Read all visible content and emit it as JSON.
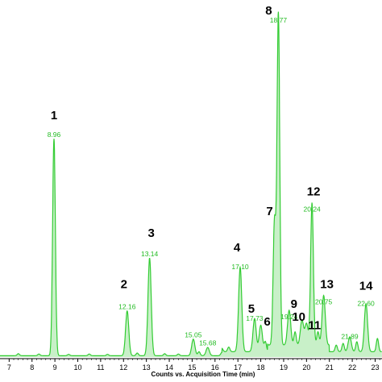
{
  "chart_data": {
    "type": "line",
    "title": "",
    "xlabel": "Counts vs. Acquisition Time (min)",
    "ylabel": "",
    "xlim": [
      6.6,
      23.3
    ],
    "ylim": [
      0,
      100
    ],
    "x_ticks": [
      "7",
      "8",
      "9",
      "10",
      "11",
      "12",
      "13",
      "14",
      "15",
      "16",
      "17",
      "18",
      "19",
      "20",
      "21",
      "22",
      "23"
    ],
    "colors": {
      "trace": "#33cc33",
      "fill": "#c8f0c8",
      "rt_label": "#22bb22",
      "axis": "#000000"
    },
    "peaks": [
      {
        "t": 8.96,
        "h": 65.5,
        "rt": "8.96",
        "num": "1"
      },
      {
        "t": 12.16,
        "h": 13.5,
        "rt": "12.16",
        "num": "2"
      },
      {
        "t": 13.14,
        "h": 29.5,
        "rt": "13.14",
        "num": "3"
      },
      {
        "t": 15.05,
        "h": 5.0,
        "rt": "15.05",
        "num": ""
      },
      {
        "t": 15.68,
        "h": 2.5,
        "rt": "15.68",
        "num": ""
      },
      {
        "t": 17.1,
        "h": 25.5,
        "rt": "17.10",
        "num": "4"
      },
      {
        "t": 17.73,
        "h": 10.0,
        "rt": "17.73",
        "num": "5"
      },
      {
        "t": 18.0,
        "h": 8.0,
        "rt": "",
        "num": "6"
      },
      {
        "t": 18.6,
        "h": 37.0,
        "rt": "",
        "num": "7"
      },
      {
        "t": 18.77,
        "h": 100.0,
        "rt": "18.77",
        "num": "8"
      },
      {
        "t": 19.24,
        "h": 10.5,
        "rt": "19.24",
        "num": "9"
      },
      {
        "t": 19.8,
        "h": 7.5,
        "rt": "",
        "num": "10"
      },
      {
        "t": 20.0,
        "h": 6.5,
        "rt": "",
        "num": "11"
      },
      {
        "t": 20.24,
        "h": 43.0,
        "rt": "20.24",
        "num": "12"
      },
      {
        "t": 20.75,
        "h": 15.0,
        "rt": "20.75",
        "num": "13"
      },
      {
        "t": 21.89,
        "h": 4.5,
        "rt": "21.89",
        "num": ""
      },
      {
        "t": 22.6,
        "h": 14.5,
        "rt": "22.60",
        "num": "14"
      }
    ]
  }
}
